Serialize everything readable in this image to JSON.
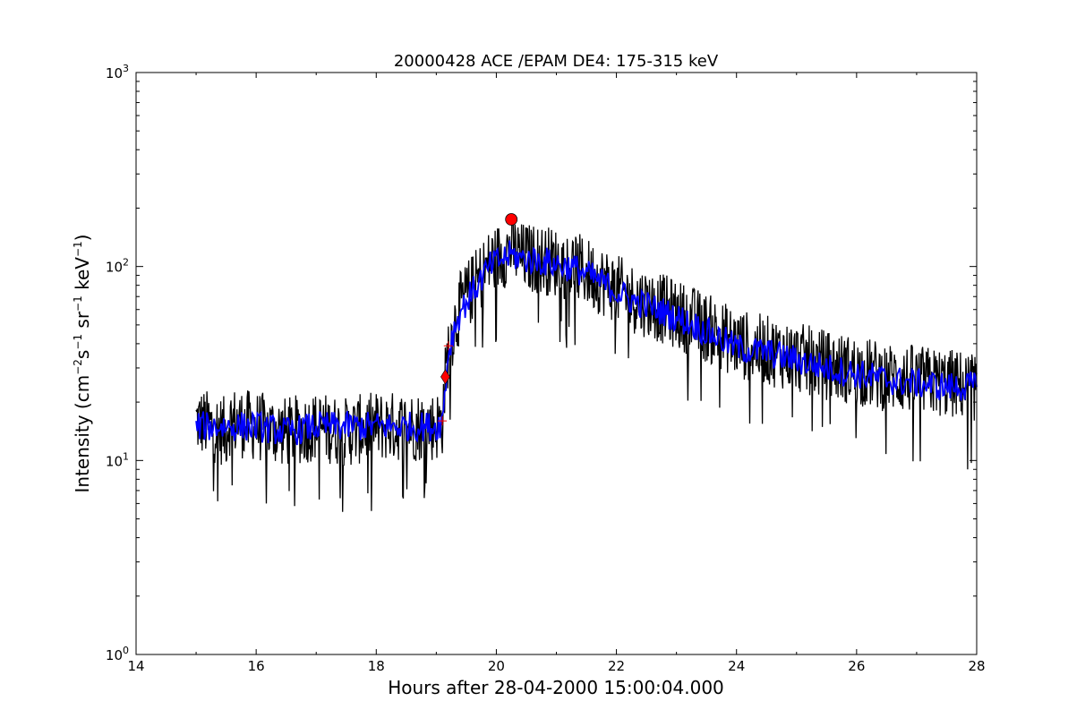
{
  "chart_data": {
    "type": "line",
    "title": "20000428 ACE /EPAM DE4: 175-315 keV",
    "xlabel": "Hours after 28-04-2000 15:00:04.000",
    "ylabel_main": "Intensity (cm",
    "ylabel_parts": [
      {
        "text": "Intensity (cm",
        "sup": false
      },
      {
        "text": "−2",
        "sup": true
      },
      {
        "text": "s",
        "sup": false
      },
      {
        "text": "−1",
        "sup": true
      },
      {
        "text": " sr",
        "sup": false
      },
      {
        "text": "−1",
        "sup": true
      },
      {
        "text": " keV",
        "sup": false
      },
      {
        "text": "−1",
        "sup": true
      },
      {
        "text": ")",
        "sup": false
      }
    ],
    "xlim": [
      14,
      28
    ],
    "ylim": [
      1,
      1000
    ],
    "yscale": "log",
    "x_ticks": [
      14,
      16,
      18,
      20,
      22,
      24,
      26,
      28
    ],
    "x_tick_labels": [
      "14",
      "16",
      "18",
      "20",
      "22",
      "24",
      "26",
      "28"
    ],
    "y_ticks": [
      1,
      10,
      100,
      1000
    ],
    "y_tick_labels": [
      {
        "base": "10",
        "exp": "0"
      },
      {
        "base": "10",
        "exp": "1"
      },
      {
        "base": "10",
        "exp": "2"
      },
      {
        "base": "10",
        "exp": "3"
      }
    ],
    "grid": false,
    "series": [
      {
        "color": "#000000",
        "style": "raw",
        "x": [
          15.0,
          15.5,
          15.55,
          16.0,
          16.5,
          17.0,
          17.5,
          18.0,
          18.5,
          19.0,
          19.1,
          19.15,
          19.2,
          19.3,
          19.4,
          19.5,
          19.7,
          19.9,
          20.1,
          20.25,
          20.4,
          20.6,
          20.8,
          21.0,
          21.3,
          21.6,
          21.9,
          22.2,
          22.5,
          22.8,
          23.1,
          23.4,
          23.7,
          24.0,
          24.5,
          25.0,
          25.5,
          26.0,
          26.5,
          27.0,
          27.5,
          28.0
        ],
        "y": [
          16,
          14,
          16,
          15,
          14,
          15,
          14,
          15,
          15,
          15,
          16,
          26,
          38,
          50,
          62,
          70,
          85,
          105,
          115,
          125,
          112,
          110,
          108,
          105,
          100,
          90,
          80,
          70,
          65,
          60,
          55,
          50,
          45,
          40,
          37,
          34,
          31,
          29,
          27,
          26,
          25,
          24
        ]
      },
      {
        "color": "#0000ff",
        "style": "smoothed",
        "x": [
          15.0,
          15.5,
          16.0,
          16.5,
          17.0,
          17.5,
          18.0,
          18.5,
          19.0,
          19.1,
          19.15,
          19.2,
          19.3,
          19.4,
          19.5,
          19.7,
          19.9,
          20.1,
          20.25,
          20.4,
          20.6,
          20.8,
          21.0,
          21.3,
          21.6,
          21.9,
          22.2,
          22.5,
          22.8,
          23.1,
          23.4,
          23.7,
          24.0,
          24.5,
          25.0,
          25.5,
          26.0,
          26.5,
          27.0,
          27.5,
          28.0
        ],
        "y": [
          15,
          15,
          15,
          14,
          15,
          15,
          15,
          15,
          15,
          16,
          24,
          36,
          48,
          58,
          66,
          82,
          100,
          110,
          115,
          110,
          108,
          106,
          103,
          98,
          88,
          78,
          68,
          63,
          58,
          53,
          48,
          43,
          38,
          36,
          33,
          30,
          28,
          26,
          25,
          24,
          24
        ]
      }
    ],
    "markers": [
      {
        "shape": "circle",
        "color": "#ff0000",
        "x": 20.25,
        "y": 175
      },
      {
        "shape": "diamond",
        "color": "#ff0000",
        "x": 19.15,
        "y": 27
      },
      {
        "shape": "plus",
        "color": "#ff0000",
        "x": 19.2,
        "y": 39
      },
      {
        "shape": "plus",
        "color": "#ff0000",
        "x": 19.1,
        "y": 16
      }
    ]
  }
}
